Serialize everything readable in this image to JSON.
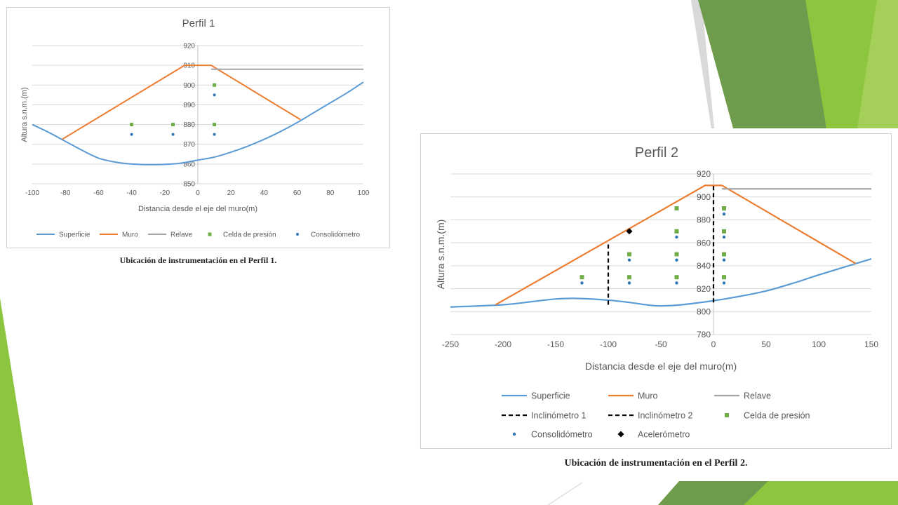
{
  "colors": {
    "surface": "#5b9bd5",
    "wall": "#ed7d31",
    "tailings": "#a5a5a5",
    "pressure_cell": "#70ad47",
    "consolidometer": "#2e75b6",
    "accelerometer": "#000000",
    "inclinometer": "#000000",
    "gridline": "#d9d9d9",
    "accent_green": "#8cc63f"
  },
  "captions": {
    "profile1": "Ubicación de instrumentación en el Perfil 1.",
    "profile2": "Ubicación de instrumentación en el Perfil 2."
  },
  "chart_data": [
    {
      "type": "line",
      "title": "Perfil 1",
      "xlabel": "Distancia desde el eje del muro(m)",
      "ylabel": "Altura s.n.m.(m)",
      "xlim": [
        -100,
        100
      ],
      "ylim": [
        850,
        920
      ],
      "xticks": [
        -100,
        -80,
        -60,
        -40,
        -20,
        0,
        20,
        40,
        60,
        80,
        100
      ],
      "yticks": [
        850,
        860,
        870,
        880,
        890,
        900,
        910,
        920
      ],
      "grid": true,
      "legend_position": "bottom",
      "series": [
        {
          "name": "Superficie",
          "kind": "line",
          "x": [
            -100,
            -90,
            -80,
            -70,
            -60,
            -50,
            -40,
            -30,
            -20,
            -10,
            0,
            10,
            20,
            30,
            40,
            50,
            60,
            70,
            80,
            90,
            100
          ],
          "y": [
            880,
            876,
            871.5,
            867,
            863,
            861,
            860,
            859.7,
            859.8,
            860.5,
            862,
            863.5,
            866,
            869,
            872.5,
            876.5,
            881,
            886,
            891,
            896,
            901.5
          ]
        },
        {
          "name": "Muro",
          "kind": "line",
          "x": [
            -82,
            -8,
            8,
            62
          ],
          "y": [
            872.5,
            910,
            910,
            882.5
          ]
        },
        {
          "name": "Relave",
          "kind": "line",
          "x": [
            8,
            100
          ],
          "y": [
            908,
            908
          ]
        },
        {
          "name": "Celda de presión",
          "kind": "marker",
          "x": [
            -40,
            -15,
            10,
            10
          ],
          "y": [
            880,
            880,
            880,
            900
          ]
        },
        {
          "name": "Consolidómetro",
          "kind": "marker",
          "x": [
            -40,
            -15,
            10,
            10
          ],
          "y": [
            875,
            875,
            875,
            895
          ]
        }
      ]
    },
    {
      "type": "line",
      "title": "Perfil 2",
      "xlabel": "Distancia desde el eje del muro(m)",
      "ylabel": "Altura s.n.m.(m)",
      "xlim": [
        -250,
        150
      ],
      "ylim": [
        780,
        920
      ],
      "xticks": [
        -250,
        -200,
        -150,
        -100,
        -50,
        0,
        50,
        100,
        150
      ],
      "yticks": [
        780,
        800,
        820,
        840,
        860,
        880,
        900,
        920
      ],
      "grid": true,
      "legend_position": "bottom",
      "series": [
        {
          "name": "Superficie",
          "kind": "line",
          "x": [
            -250,
            -200,
            -170,
            -150,
            -130,
            -100,
            -80,
            -60,
            -50,
            -30,
            0,
            20,
            50,
            80,
            100,
            150
          ],
          "y": [
            804,
            806,
            809,
            811,
            811.5,
            810,
            808,
            805.5,
            805,
            806,
            809.5,
            812.5,
            818,
            826,
            832,
            846
          ]
        },
        {
          "name": "Muro",
          "kind": "line",
          "x": [
            -207,
            -8,
            8,
            135
          ],
          "y": [
            806,
            910,
            910,
            842
          ]
        },
        {
          "name": "Relave",
          "kind": "line",
          "x": [
            8,
            150
          ],
          "y": [
            907,
            907
          ]
        },
        {
          "name": "Inclinómetro 1",
          "kind": "dashed",
          "x": [
            -100,
            -100
          ],
          "y": [
            806,
            860
          ]
        },
        {
          "name": "Inclinómetro 2",
          "kind": "dashed",
          "x": [
            0,
            0
          ],
          "y": [
            808,
            910
          ]
        },
        {
          "name": "Celda de presión",
          "kind": "marker",
          "x": [
            -125,
            -80,
            -80,
            -35,
            -35,
            -35,
            -35,
            10,
            10,
            10,
            10,
            10
          ],
          "y": [
            830,
            830,
            850,
            830,
            850,
            870,
            890,
            830,
            850,
            870,
            890,
            890
          ]
        },
        {
          "name": "Consolidómetro",
          "kind": "marker",
          "x": [
            -125,
            -80,
            -80,
            -35,
            -35,
            -35,
            10,
            10,
            10,
            10
          ],
          "y": [
            825,
            825,
            845,
            825,
            845,
            865,
            825,
            845,
            865,
            885
          ]
        },
        {
          "name": "Acelerómetro",
          "kind": "diamond",
          "x": [
            -80
          ],
          "y": [
            870
          ]
        }
      ]
    }
  ]
}
